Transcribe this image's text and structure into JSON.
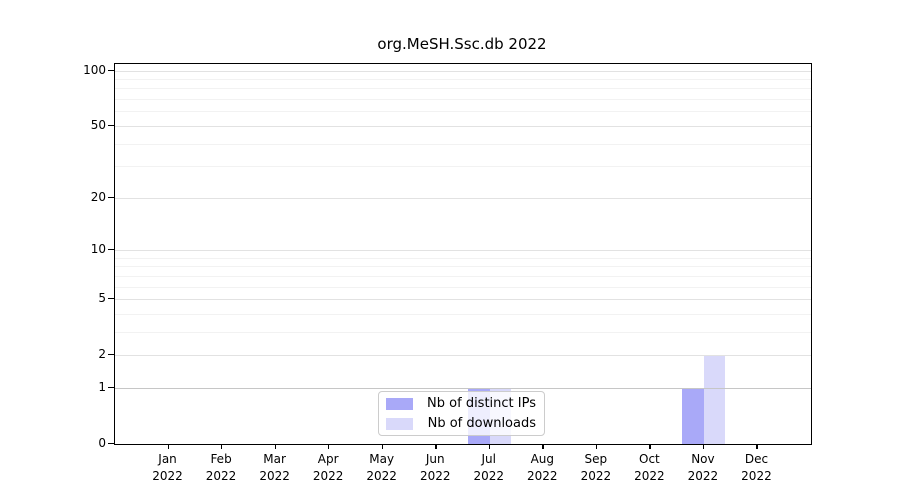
{
  "chart_data": {
    "type": "bar",
    "title": "org.MeSH.Ssc.db 2022",
    "categories": [
      "Jan 2022",
      "Feb 2022",
      "Mar 2022",
      "Apr 2022",
      "May 2022",
      "Jun 2022",
      "Jul 2022",
      "Aug 2022",
      "Sep 2022",
      "Oct 2022",
      "Nov 2022",
      "Dec 2022"
    ],
    "series": [
      {
        "name": "Nb of distinct IPs",
        "color": "#a9a9f8",
        "values": [
          0,
          0,
          0,
          0,
          0,
          0,
          1,
          0,
          0,
          0,
          1,
          0
        ]
      },
      {
        "name": "Nb of downloads",
        "color": "#d9d9fa",
        "values": [
          0,
          0,
          0,
          0,
          0,
          0,
          1,
          0,
          0,
          0,
          2,
          0
        ]
      }
    ],
    "xlabel": "",
    "ylabel": "",
    "y_axis": {
      "scale": "log1p",
      "range": [
        0,
        100
      ],
      "ticks": [
        0,
        1,
        2,
        5,
        10,
        20,
        50,
        100
      ],
      "minor_gridlines": [
        3,
        4,
        6,
        7,
        8,
        9,
        30,
        40,
        60,
        70,
        80,
        90
      ]
    },
    "grid": true,
    "legend_position": "inside-bottom-center"
  },
  "colors": {
    "axis": "#000000",
    "major_grid": "#e2e2e2",
    "minor_grid": "#f2f2f2",
    "unit_grid": "#c6c6c6",
    "background": "#ffffff",
    "legend_border": "#cccccc"
  }
}
